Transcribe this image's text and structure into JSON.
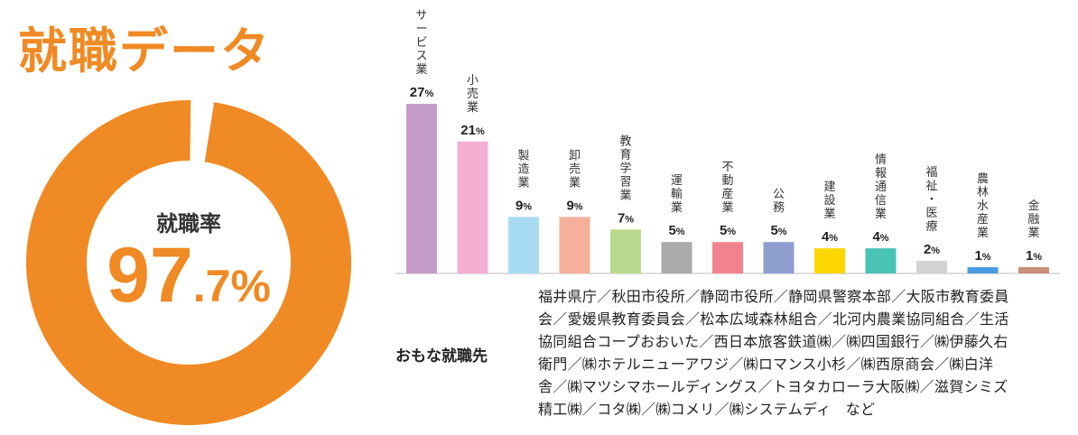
{
  "title": "就職データ",
  "employment_rate": {
    "label": "就職率",
    "value_int": "97",
    "value_dec": ".7%",
    "value": 97.7,
    "ring_color": "#F08A24"
  },
  "chart_data": {
    "type": "bar",
    "categories": [
      "サービス業",
      "小売業",
      "製造業",
      "卸売業",
      "教育学習業",
      "運輸業",
      "不動産業",
      "公務",
      "建設業",
      "情報通信業",
      "福祉・医療",
      "農林水産業",
      "金融業"
    ],
    "values": [
      27,
      21,
      9,
      9,
      7,
      5,
      5,
      5,
      4,
      4,
      2,
      1,
      1
    ],
    "value_suffix": "%",
    "colors": [
      "#C59BC9",
      "#F4AED1",
      "#A8DCF3",
      "#F6AF9B",
      "#B9DA8C",
      "#ABABAB",
      "#F2838E",
      "#8E9FCF",
      "#FCD600",
      "#48C3B6",
      "#D3D3D3",
      "#4B9CE0",
      "#C98E7C"
    ],
    "ylim": [
      0,
      27
    ],
    "grid": false
  },
  "employers": {
    "heading": "おもな就職先",
    "lines": [
      "福井県庁／秋田市役所／静岡市役所／静岡県警察本部／大阪市教育委員",
      "会／愛媛県教育委員会／松本広域森林組合／北河内農業協同組合／生活",
      "協同組合コープおおいた／西日本旅客鉄道㈱／㈱四国銀行／㈱伊藤久右",
      "衛門／㈱ホテルニューアワジ／㈱ロマンス小杉／㈱西原商会／㈱白洋",
      "舎／㈱マツシマホールディングス／トヨタカローラ大阪㈱／滋賀シミズ",
      "精工㈱／コタ㈱／㈱コメリ／㈱システムディ　など"
    ]
  }
}
